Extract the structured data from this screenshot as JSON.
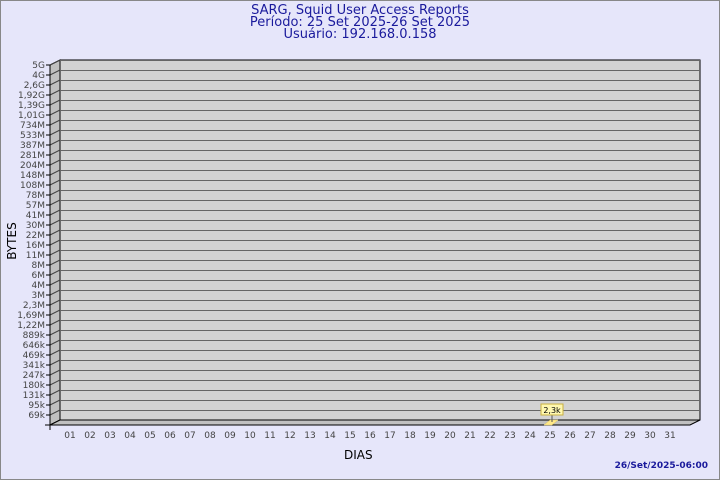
{
  "chart_data": {
    "type": "bar",
    "title": "SARG, Squid User Access Reports",
    "subtitle_period": "Período: 25 Set 2025-26 Set 2025",
    "subtitle_user": "Usuário: 192.168.0.158",
    "xlabel": "DIAS",
    "ylabel": "BYTES",
    "y_scale": "log",
    "y_ticks": [
      "5G",
      "4G",
      "2,6G",
      "1,92G",
      "1,39G",
      "1,01G",
      "734M",
      "533M",
      "387M",
      "281M",
      "204M",
      "148M",
      "108M",
      "78M",
      "57M",
      "41M",
      "30M",
      "22M",
      "16M",
      "11M",
      "8M",
      "6M",
      "4M",
      "3M",
      "2,3M",
      "1,69M",
      "1,22M",
      "889k",
      "646k",
      "469k",
      "341k",
      "247k",
      "180k",
      "131k",
      "95k",
      "69k"
    ],
    "categories": [
      "01",
      "02",
      "03",
      "04",
      "05",
      "06",
      "07",
      "08",
      "09",
      "10",
      "11",
      "12",
      "13",
      "14",
      "15",
      "16",
      "17",
      "18",
      "19",
      "20",
      "21",
      "22",
      "23",
      "24",
      "25",
      "26",
      "27",
      "28",
      "29",
      "30",
      "31"
    ],
    "bars": [
      {
        "category": "25",
        "value": 2300,
        "label": "2,3k"
      }
    ],
    "grid": true,
    "colors": {
      "background": "#e6e6fa",
      "wall": "#d3d3d3",
      "bar": "#ffe88a",
      "title": "#1a1a9c"
    }
  },
  "footer": {
    "timestamp": "26/Set/2025-06:00"
  }
}
